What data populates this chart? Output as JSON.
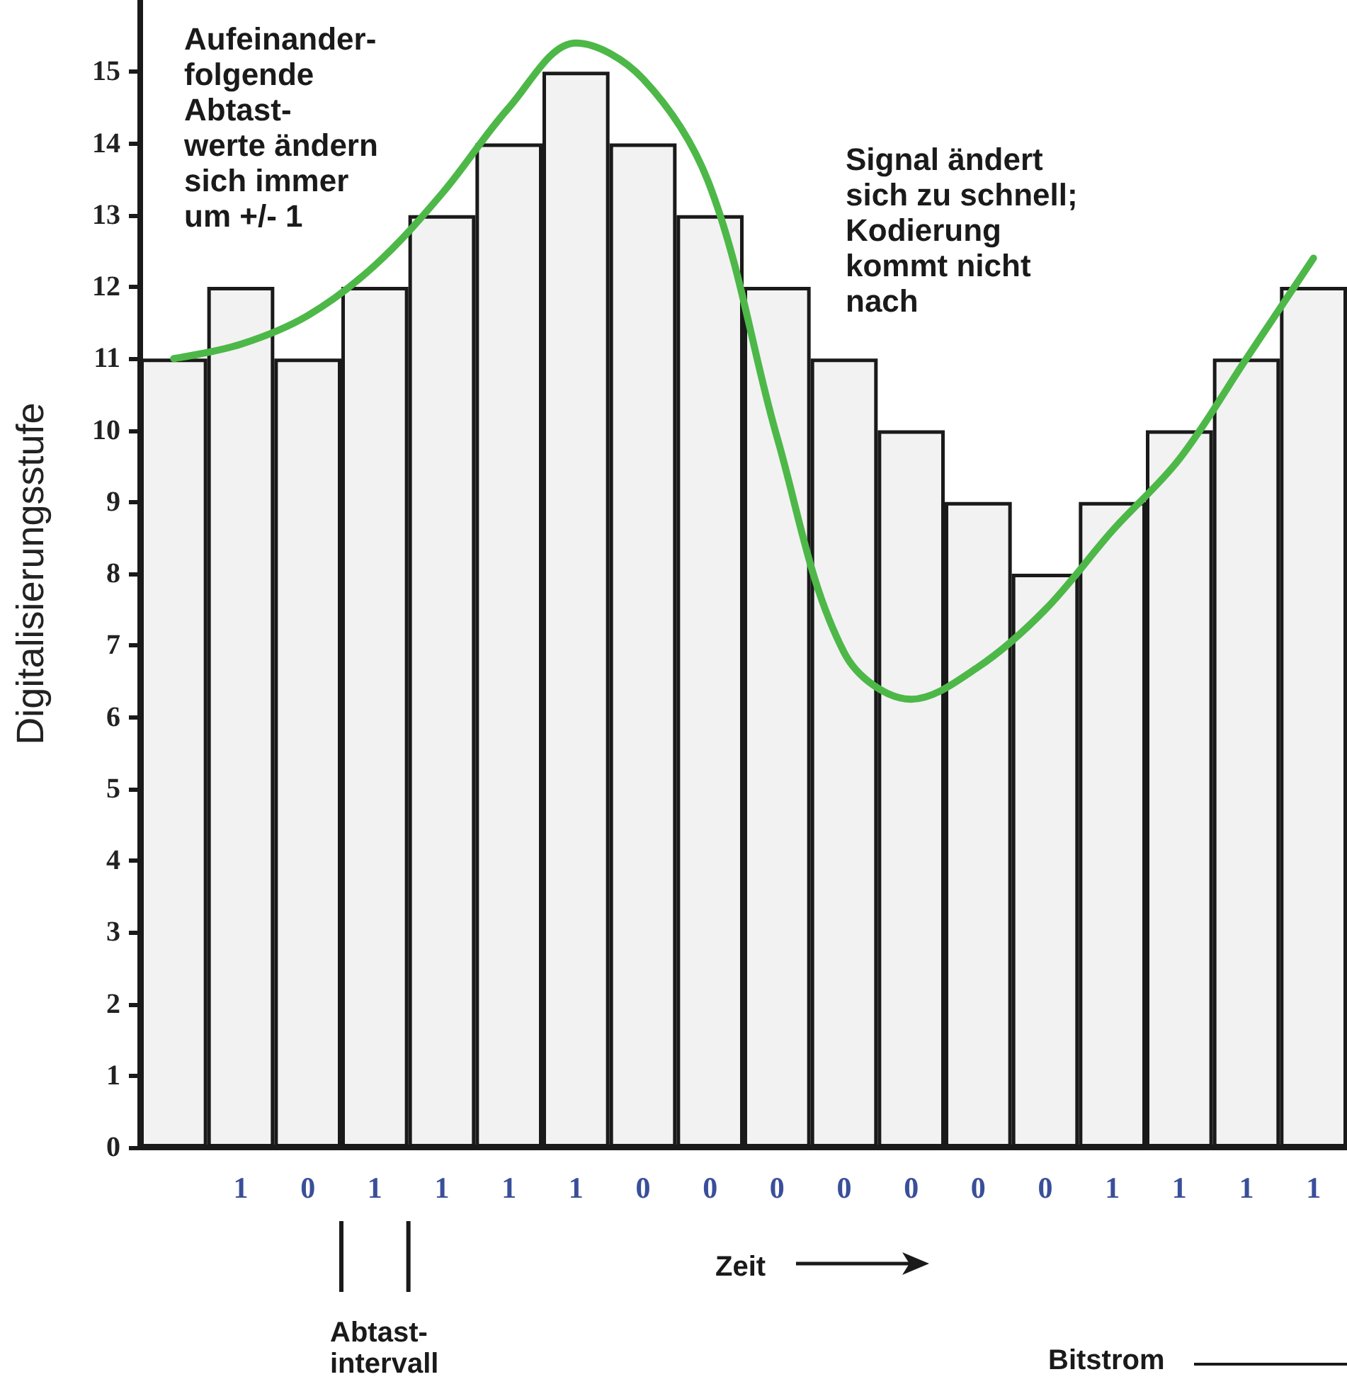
{
  "chart_data": {
    "type": "bar",
    "ylabel": "Digitalisierungsstufe",
    "xlabel": "Zeit",
    "categories": [
      null,
      "1",
      "0",
      "1",
      "1",
      "1",
      "1",
      "0",
      "0",
      "0",
      "0",
      "0",
      "0",
      "0",
      "1",
      "1",
      "1",
      "1"
    ],
    "series": [
      {
        "color": "#f2f2f2",
        "values": [
          11,
          12,
          11,
          12,
          13,
          14,
          15,
          14,
          13,
          12,
          11,
          10,
          9,
          8,
          9,
          10,
          11,
          12
        ]
      },
      {
        "type": "line",
        "color": "#4db848",
        "values": [
          11.0,
          11.2,
          11.6,
          12.3,
          13.3,
          14.5,
          15.4,
          14.9,
          13.4,
          9.9,
          6.9,
          6.25,
          6.7,
          7.5,
          8.6,
          9.6,
          11.0,
          12.4
        ]
      }
    ],
    "ylim": [
      0,
      16
    ],
    "yticks": [
      0,
      1,
      2,
      3,
      4,
      5,
      6,
      7,
      8,
      9,
      10,
      11,
      12,
      13,
      14,
      15
    ],
    "grid": false,
    "marker": "none",
    "line_style": "solid",
    "annotations": [
      "Aufeinander-\nfolgende\nAbtast-\nwerte ändern\nsich immer\num +/- 1",
      "Signal ändert\nsich zu schnell;\nKodierung\nkommt nicht\nnach",
      "Abtast-\nintervall",
      "Bitstrom"
    ]
  }
}
